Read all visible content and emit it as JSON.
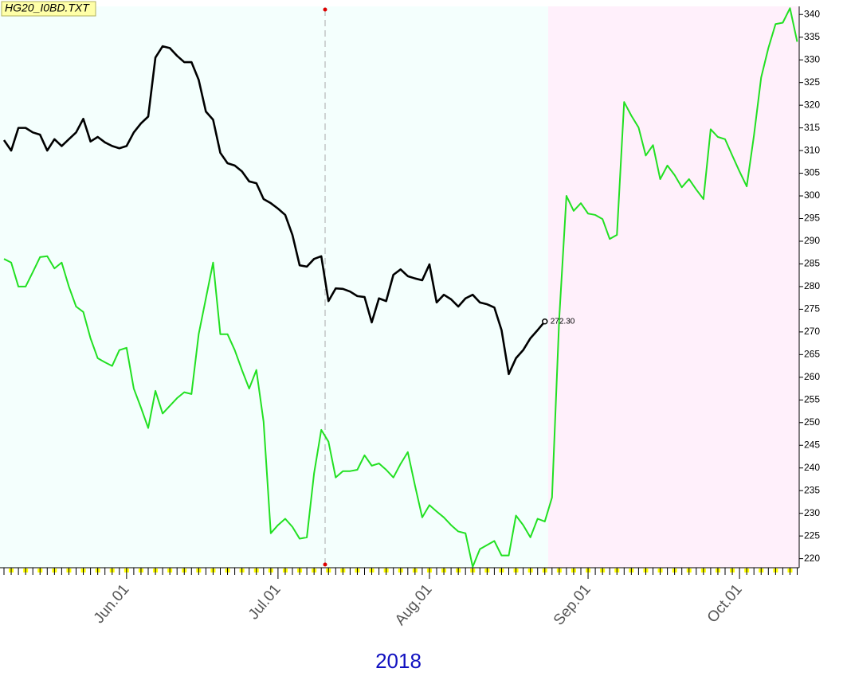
{
  "chart_data": {
    "type": "line",
    "title": "HG20_I0BD.TXT",
    "xlabel": "2018",
    "categories": [
      null,
      null,
      null,
      null,
      null,
      null,
      null,
      null,
      null,
      null,
      null,
      null,
      null,
      null,
      null,
      null,
      null,
      "Jun.01",
      null,
      null,
      null,
      null,
      null,
      null,
      null,
      null,
      null,
      null,
      null,
      null,
      null,
      null,
      null,
      null,
      null,
      null,
      null,
      null,
      "Jul.01",
      null,
      null,
      null,
      null,
      null,
      null,
      null,
      null,
      null,
      null,
      null,
      null,
      null,
      null,
      null,
      null,
      null,
      null,
      null,
      null,
      "Aug.01",
      null,
      null,
      null,
      null,
      null,
      null,
      null,
      null,
      null,
      null,
      null,
      null,
      null,
      null,
      null,
      null,
      null,
      null,
      null,
      null,
      null,
      "Sep.01",
      null,
      null,
      null,
      null,
      null,
      null,
      null,
      null,
      null,
      null,
      null,
      null,
      null,
      null,
      null,
      null,
      null,
      null,
      null,
      null,
      "Oct.01",
      null,
      null,
      null,
      null,
      null,
      null,
      null,
      null
    ],
    "series": [
      {
        "color": "#000000",
        "values": [
          312.3,
          310.0,
          315.0,
          315.0,
          314.0,
          313.5,
          310.0,
          312.5,
          311.0,
          312.5,
          314.0,
          317.0,
          312.0,
          313.0,
          311.8,
          311.0,
          310.5,
          311.0,
          314.0,
          316.0,
          317.5,
          330.5,
          333.0,
          332.6,
          330.9,
          329.5,
          329.5,
          325.6,
          318.6,
          316.8,
          309.5,
          307.2,
          306.7,
          305.4,
          303.2,
          302.8,
          299.3,
          298.4,
          297.2,
          295.8,
          291.4,
          284.7,
          284.4,
          286.1,
          286.7,
          276.8,
          279.6,
          279.5,
          278.9,
          277.9,
          277.7,
          272.1,
          277.4,
          276.8,
          282.6,
          283.8,
          282.3,
          281.8,
          281.4,
          284.9,
          276.5,
          278.2,
          277.2,
          275.6,
          277.4,
          278.2,
          276.5,
          276.1,
          275.4,
          270.4,
          260.7,
          264.2,
          266.0,
          268.6,
          270.4,
          272.3,
          null,
          null,
          null,
          null,
          null,
          null,
          null,
          null,
          null,
          null,
          null,
          null,
          null,
          null,
          null,
          null,
          null,
          null,
          null,
          null,
          null,
          null,
          null,
          null,
          null,
          null,
          null,
          null,
          null,
          null,
          null,
          null,
          null,
          null,
          null
        ],
        "value_labels": [
          null,
          null,
          null,
          null,
          null,
          null,
          null,
          null,
          null,
          null,
          null,
          null,
          null,
          null,
          null,
          null,
          null,
          null,
          null,
          null,
          null,
          null,
          null,
          null,
          null,
          null,
          null,
          null,
          null,
          null,
          null,
          null,
          null,
          null,
          null,
          null,
          null,
          null,
          null,
          null,
          null,
          null,
          null,
          null,
          null,
          null,
          null,
          null,
          null,
          null,
          null,
          null,
          null,
          null,
          null,
          null,
          null,
          null,
          null,
          null,
          null,
          null,
          null,
          null,
          null,
          null,
          null,
          null,
          null,
          null,
          null,
          null,
          null,
          null,
          null,
          "272.30",
          null,
          null,
          null,
          null,
          null,
          null,
          null,
          null,
          null,
          null,
          null,
          null,
          null,
          null,
          null,
          null,
          null,
          null,
          null,
          null,
          null,
          null,
          null,
          null,
          null,
          null,
          null,
          null,
          null,
          null,
          null,
          null,
          null,
          null,
          null
        ]
      },
      {
        "color": "#22e022",
        "values": [
          286.1,
          285.3,
          280.0,
          280.0,
          283.2,
          286.5,
          286.7,
          284.0,
          285.3,
          280.0,
          275.6,
          274.4,
          268.6,
          264.2,
          263.3,
          262.5,
          266.0,
          266.5,
          257.5,
          253.3,
          248.8,
          257.0,
          252.0,
          253.7,
          255.4,
          256.7,
          256.3,
          269.5,
          277.4,
          285.3,
          269.5,
          269.5,
          266.0,
          261.6,
          257.5,
          261.6,
          250.2,
          225.6,
          227.4,
          228.8,
          227.0,
          224.4,
          224.7,
          238.8,
          248.4,
          245.8,
          237.9,
          239.3,
          239.3,
          239.6,
          242.8,
          240.5,
          241.0,
          239.6,
          237.9,
          240.9,
          243.5,
          236.1,
          229.1,
          231.8,
          230.4,
          229.1,
          227.4,
          226.0,
          225.6,
          218.2,
          222.1,
          223.0,
          223.9,
          220.7,
          220.7,
          229.5,
          227.4,
          224.7,
          228.8,
          228.2,
          233.5,
          273.0,
          300.0,
          296.7,
          298.4,
          296.1,
          295.8,
          294.9,
          290.5,
          291.4,
          320.7,
          317.7,
          315.1,
          308.9,
          311.2,
          303.7,
          306.7,
          304.6,
          301.9,
          303.7,
          301.4,
          299.3,
          314.7,
          313.0,
          312.5,
          308.9,
          305.4,
          302.1,
          313.3,
          326.1,
          332.6,
          337.9,
          338.2,
          341.4,
          334.0
        ]
      }
    ],
    "ylim": [
      218,
      341.8
    ],
    "yticks": [
      220,
      225,
      230,
      235,
      240,
      245,
      250,
      255,
      260,
      265,
      270,
      275,
      280,
      285,
      290,
      295,
      300,
      305,
      310,
      315,
      320,
      325,
      330,
      335,
      340
    ],
    "grid": false
  }
}
